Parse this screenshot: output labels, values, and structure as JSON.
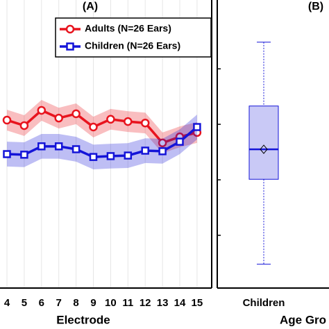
{
  "chart_data": [
    {
      "type": "line",
      "title": "(A)",
      "x_label": "Electrode",
      "categories": [
        "4",
        "5",
        "6",
        "7",
        "8",
        "9",
        "10",
        "11",
        "12",
        "13",
        "14",
        "15"
      ],
      "ylim": [
        0,
        10
      ],
      "grid": true,
      "legend": "upper right",
      "series": [
        {
          "name": "Adults (N=26 Ears)",
          "color": "#e8141e",
          "marker": "circle",
          "band": 0.36,
          "values": [
            5.83,
            5.64,
            6.17,
            5.9,
            6.05,
            5.59,
            5.86,
            5.78,
            5.73,
            5.04,
            5.25,
            5.4
          ]
        },
        {
          "name": "Children (N=26 Ears)",
          "color": "#1414d8",
          "marker": "square",
          "band": 0.43,
          "values": [
            4.65,
            4.63,
            4.92,
            4.92,
            4.82,
            4.55,
            4.58,
            4.6,
            4.77,
            4.75,
            5.08,
            5.59
          ]
        }
      ]
    },
    {
      "type": "box",
      "title": "(B)",
      "x_label": "Age Gro",
      "categories": [
        "Children"
      ],
      "color": "#1414d8",
      "ylim": [
        0.05,
        5.24
      ],
      "yticks": [
        1,
        2,
        3,
        4
      ],
      "boxes": [
        {
          "whislo": 0.48,
          "q1": 2.01,
          "med": 2.55,
          "mean": 2.55,
          "q3": 3.33,
          "whishi": 4.48
        }
      ]
    }
  ]
}
